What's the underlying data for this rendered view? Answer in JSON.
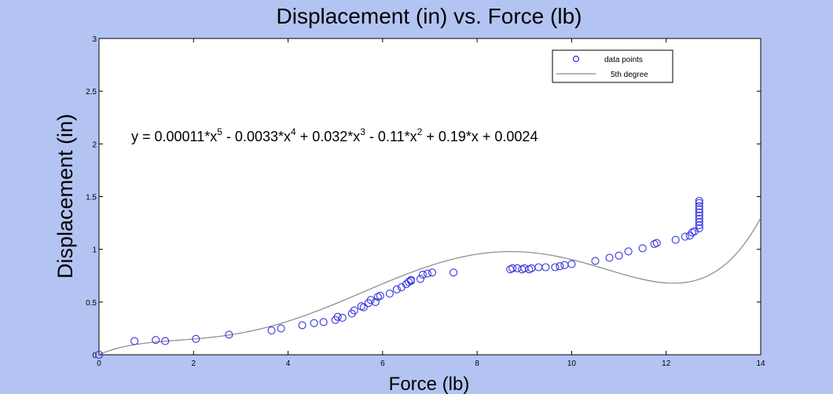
{
  "figure": {
    "background": "#b3c4f2",
    "axes_background": "#ffffff"
  },
  "chart_data": {
    "type": "scatter",
    "title": "Displacement (in) vs. Force (lb)",
    "xlabel": "Force (lb)",
    "ylabel": "Displacement (in)",
    "xlim": [
      0,
      14
    ],
    "ylim": [
      0,
      3
    ],
    "xticks": [
      0,
      2,
      4,
      6,
      8,
      10,
      12,
      14
    ],
    "yticks": [
      0,
      0.5,
      1,
      1.5,
      2,
      2.5,
      3
    ],
    "ytick_labels": [
      "0",
      "0.5",
      "1",
      "1.5",
      "2",
      "2.5",
      "3"
    ],
    "grid": false,
    "legend_position": "top-right",
    "equation": {
      "prefix": "y = 0.00011*x",
      "exp1": "5",
      "mid1": " - 0.0033*x",
      "exp2": "4",
      "mid2": " + 0.032*x",
      "exp3": "3",
      "mid3": " - 0.11*x",
      "exp4": "2",
      "suffix": " + 0.19*x + 0.0024"
    },
    "series": [
      {
        "name": "data points",
        "kind": "scatter",
        "marker": "circle-open",
        "color": "#3333dd",
        "points": [
          [
            0.0,
            0.0
          ],
          [
            0.75,
            0.13
          ],
          [
            1.2,
            0.14
          ],
          [
            1.4,
            0.13
          ],
          [
            2.05,
            0.15
          ],
          [
            2.75,
            0.19
          ],
          [
            3.65,
            0.23
          ],
          [
            3.85,
            0.25
          ],
          [
            4.3,
            0.28
          ],
          [
            4.55,
            0.3
          ],
          [
            4.75,
            0.31
          ],
          [
            5.0,
            0.33
          ],
          [
            5.05,
            0.36
          ],
          [
            5.15,
            0.35
          ],
          [
            5.35,
            0.39
          ],
          [
            5.4,
            0.42
          ],
          [
            5.55,
            0.46
          ],
          [
            5.6,
            0.45
          ],
          [
            5.7,
            0.49
          ],
          [
            5.75,
            0.52
          ],
          [
            5.85,
            0.5
          ],
          [
            5.9,
            0.55
          ],
          [
            5.95,
            0.56
          ],
          [
            6.15,
            0.58
          ],
          [
            6.3,
            0.62
          ],
          [
            6.4,
            0.64
          ],
          [
            6.5,
            0.67
          ],
          [
            6.55,
            0.69
          ],
          [
            6.6,
            0.7
          ],
          [
            6.6,
            0.71
          ],
          [
            6.8,
            0.72
          ],
          [
            6.85,
            0.76
          ],
          [
            6.95,
            0.77
          ],
          [
            7.05,
            0.78
          ],
          [
            7.5,
            0.78
          ],
          [
            8.7,
            0.81
          ],
          [
            8.75,
            0.82
          ],
          [
            8.85,
            0.82
          ],
          [
            8.95,
            0.81
          ],
          [
            9.0,
            0.82
          ],
          [
            9.1,
            0.81
          ],
          [
            9.15,
            0.82
          ],
          [
            9.3,
            0.83
          ],
          [
            9.45,
            0.83
          ],
          [
            9.65,
            0.83
          ],
          [
            9.75,
            0.84
          ],
          [
            9.85,
            0.85
          ],
          [
            10.0,
            0.86
          ],
          [
            10.5,
            0.89
          ],
          [
            10.8,
            0.92
          ],
          [
            11.0,
            0.94
          ],
          [
            11.2,
            0.98
          ],
          [
            11.5,
            1.01
          ],
          [
            11.75,
            1.05
          ],
          [
            11.8,
            1.06
          ],
          [
            12.2,
            1.09
          ],
          [
            12.4,
            1.12
          ],
          [
            12.5,
            1.13
          ],
          [
            12.55,
            1.16
          ],
          [
            12.6,
            1.17
          ],
          [
            12.7,
            1.2
          ],
          [
            12.7,
            1.23
          ],
          [
            12.7,
            1.26
          ],
          [
            12.7,
            1.29
          ],
          [
            12.7,
            1.32
          ],
          [
            12.7,
            1.35
          ],
          [
            12.7,
            1.38
          ],
          [
            12.7,
            1.41
          ],
          [
            12.7,
            1.44
          ],
          [
            12.7,
            1.46
          ]
        ]
      },
      {
        "name": "5th degree",
        "kind": "line",
        "color": "#888888",
        "coefficients": [
          0.00011,
          -0.0033,
          0.032,
          -0.11,
          0.19,
          0.0024
        ]
      }
    ]
  }
}
